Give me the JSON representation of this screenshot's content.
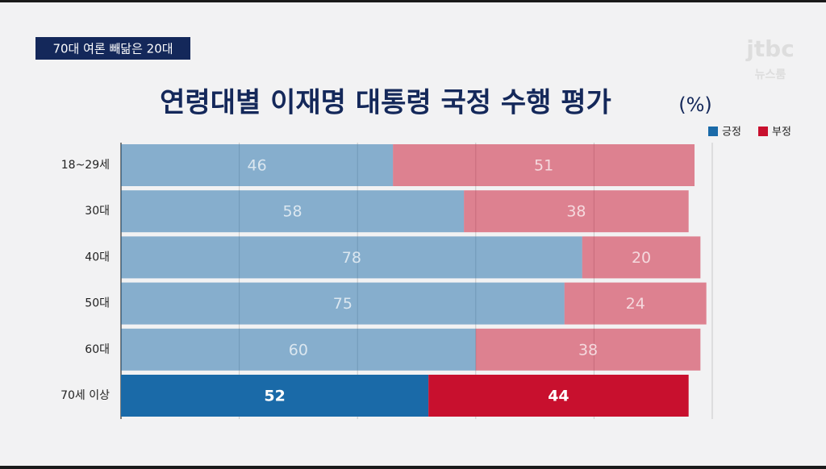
{
  "tag": "70대 여론 빼닮은 20대",
  "logo": {
    "brand": "jtbc",
    "program": "뉴스룸"
  },
  "chart_data": {
    "type": "stacked-bar-horizontal",
    "title": "연령대별 이재명 대통령 국정 수행 평가",
    "unit": "(%)",
    "categories": [
      "18~29세",
      "30대",
      "40대",
      "50대",
      "60대",
      "70세 이상"
    ],
    "series": [
      {
        "name": "긍정",
        "color": "#1a6aa8",
        "values": [
          46,
          58,
          78,
          75,
          60,
          52
        ]
      },
      {
        "name": "부정",
        "color": "#c8102e",
        "values": [
          51,
          38,
          20,
          24,
          38,
          44
        ]
      }
    ],
    "xlim": [
      0,
      100
    ],
    "xticks": [
      0,
      20,
      40,
      60,
      80,
      100
    ],
    "grid": true,
    "legend": "top-right",
    "highlight_index": 5
  }
}
